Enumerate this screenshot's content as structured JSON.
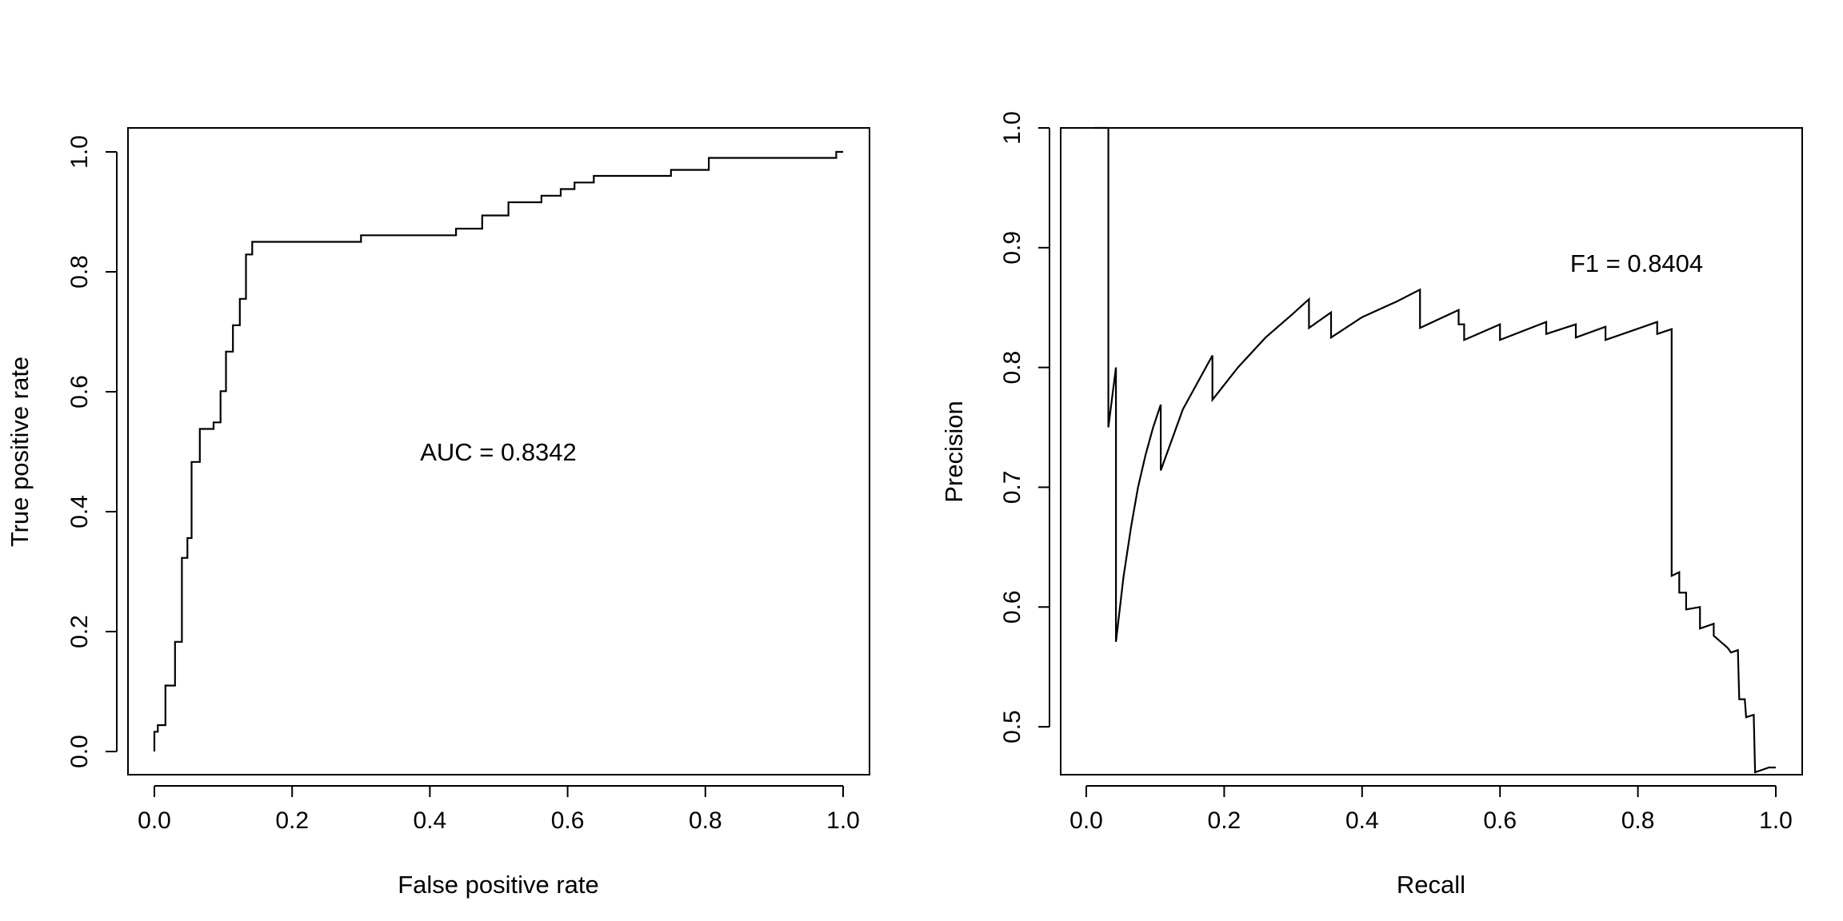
{
  "chart_data": [
    {
      "type": "line",
      "xlabel": "False positive rate",
      "ylabel": "True positive rate",
      "xlim": [
        0,
        1
      ],
      "ylim": [
        0,
        1
      ],
      "xticks": [
        "0.0",
        "0.2",
        "0.4",
        "0.6",
        "0.8",
        "1.0"
      ],
      "xtick_values": [
        0,
        0.2,
        0.4,
        0.6,
        0.8,
        1.0
      ],
      "yticks": [
        "0.0",
        "0.2",
        "0.4",
        "0.6",
        "0.8",
        "1.0"
      ],
      "ytick_values": [
        0,
        0.2,
        0.4,
        0.6,
        0.8,
        1.0
      ],
      "grid": false,
      "step": true,
      "annotation": "AUC = 0.8342",
      "annotation_at": [
        0.5,
        0.5
      ],
      "series": [
        {
          "x": [
            0,
            0.005,
            0.016,
            0.03,
            0.04,
            0.048,
            0.054,
            0.066,
            0.086,
            0.096,
            0.104,
            0.114,
            0.124,
            0.133,
            0.142,
            0.15,
            0.3,
            0.438,
            0.476,
            0.514,
            0.562,
            0.59,
            0.61,
            0.638,
            0.75,
            0.805,
            0.99,
            1.0
          ],
          "y": [
            0,
            0.033,
            0.044,
            0.11,
            0.183,
            0.323,
            0.356,
            0.483,
            0.538,
            0.549,
            0.601,
            0.667,
            0.711,
            0.755,
            0.829,
            0.85,
            0.85,
            0.861,
            0.872,
            0.894,
            0.916,
            0.927,
            0.938,
            0.949,
            0.96,
            0.97,
            0.99,
            1.0
          ]
        }
      ]
    },
    {
      "type": "line",
      "xlabel": "Recall",
      "ylabel": "Precision",
      "xlim": [
        0,
        1
      ],
      "ylim": [
        0.46,
        1
      ],
      "xticks": [
        "0.0",
        "0.2",
        "0.4",
        "0.6",
        "0.8",
        "1.0"
      ],
      "xtick_values": [
        0,
        0.2,
        0.4,
        0.6,
        0.8,
        1.0
      ],
      "yticks": [
        "0.5",
        "0.6",
        "0.7",
        "0.8",
        "0.9",
        "1.0"
      ],
      "ytick_values": [
        0.5,
        0.6,
        0.7,
        0.8,
        0.9,
        1.0
      ],
      "grid": false,
      "step": false,
      "annotation": "F1 = 0.8404",
      "annotation_at": [
        0.8,
        0.9
      ],
      "series": [
        {
          "x": [
            0.011,
            0.032,
            0.032,
            0.043,
            0.043,
            0.054,
            0.065,
            0.075,
            0.086,
            0.097,
            0.108,
            0.108,
            0.14,
            0.183,
            0.183,
            0.22,
            0.26,
            0.3,
            0.323,
            0.323,
            0.355,
            0.355,
            0.4,
            0.45,
            0.484,
            0.484,
            0.54,
            0.54,
            0.548,
            0.548,
            0.6,
            0.6,
            0.667,
            0.667,
            0.71,
            0.71,
            0.753,
            0.753,
            0.828,
            0.828,
            0.849,
            0.849,
            0.86,
            0.86,
            0.87,
            0.87,
            0.89,
            0.89,
            0.91,
            0.91,
            0.92,
            0.93,
            0.935,
            0.945,
            0.947,
            0.955,
            0.957,
            0.968,
            0.97,
            0.99,
            1.0
          ],
          "y": [
            1.0,
            1.0,
            0.75,
            0.8,
            0.571,
            0.625,
            0.667,
            0.7,
            0.727,
            0.75,
            0.769,
            0.714,
            0.765,
            0.81,
            0.773,
            0.8,
            0.825,
            0.845,
            0.857,
            0.833,
            0.846,
            0.825,
            0.842,
            0.855,
            0.865,
            0.833,
            0.848,
            0.836,
            0.836,
            0.823,
            0.836,
            0.823,
            0.838,
            0.828,
            0.836,
            0.825,
            0.834,
            0.823,
            0.838,
            0.828,
            0.832,
            0.626,
            0.629,
            0.612,
            0.612,
            0.598,
            0.6,
            0.582,
            0.586,
            0.576,
            0.571,
            0.566,
            0.562,
            0.564,
            0.523,
            0.523,
            0.508,
            0.51,
            0.462,
            0.466,
            0.466
          ]
        }
      ]
    }
  ]
}
